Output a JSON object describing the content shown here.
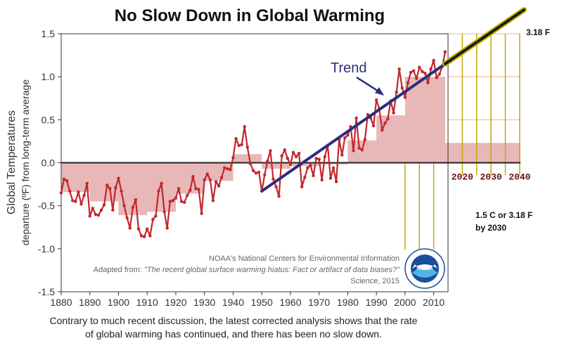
{
  "chart_data": {
    "type": "line",
    "title": "No Slow Down in Global Warming",
    "ylabel": "Global Temperatures",
    "ylabel_sub": "departure (ºF) from long-term average",
    "xlim": [
      1880,
      2015
    ],
    "ylim": [
      -1.5,
      1.5
    ],
    "x_ticks": [
      "1880",
      "1890",
      "1900",
      "1910",
      "1920",
      "1930",
      "1940",
      "1950",
      "1960",
      "1970",
      "1980",
      "1990",
      "2000",
      "2010"
    ],
    "y_ticks": [
      "1.5",
      "1.0",
      "0.5",
      "0.0",
      "-0.5",
      "-1.0",
      "-1.5"
    ],
    "series": [
      {
        "color": "#c1272d",
        "x": [
          1880,
          1881,
          1882,
          1883,
          1884,
          1885,
          1886,
          1887,
          1888,
          1889,
          1890,
          1891,
          1892,
          1893,
          1894,
          1895,
          1896,
          1897,
          1898,
          1899,
          1900,
          1901,
          1902,
          1903,
          1904,
          1905,
          1906,
          1907,
          1908,
          1909,
          1910,
          1911,
          1912,
          1913,
          1914,
          1915,
          1916,
          1917,
          1918,
          1919,
          1920,
          1921,
          1922,
          1923,
          1924,
          1925,
          1926,
          1927,
          1928,
          1929,
          1930,
          1931,
          1932,
          1933,
          1934,
          1935,
          1936,
          1937,
          1938,
          1939,
          1940,
          1941,
          1942,
          1943,
          1944,
          1945,
          1946,
          1947,
          1948,
          1949,
          1950,
          1951,
          1952,
          1953,
          1954,
          1955,
          1956,
          1957,
          1958,
          1959,
          1960,
          1961,
          1962,
          1963,
          1964,
          1965,
          1966,
          1967,
          1968,
          1969,
          1970,
          1971,
          1972,
          1973,
          1974,
          1975,
          1976,
          1977,
          1978,
          1979,
          1980,
          1981,
          1982,
          1983,
          1984,
          1985,
          1986,
          1987,
          1988,
          1989,
          1990,
          1991,
          1992,
          1993,
          1994,
          1995,
          1996,
          1997,
          1998,
          1999,
          2000,
          2001,
          2002,
          2003,
          2004,
          2005,
          2006,
          2007,
          2008,
          2009,
          2010,
          2011,
          2012,
          2013,
          2014
        ],
        "values": [
          -0.35,
          -0.19,
          -0.21,
          -0.33,
          -0.44,
          -0.45,
          -0.34,
          -0.48,
          -0.38,
          -0.24,
          -0.62,
          -0.53,
          -0.6,
          -0.61,
          -0.55,
          -0.49,
          -0.26,
          -0.3,
          -0.55,
          -0.29,
          -0.18,
          -0.33,
          -0.5,
          -0.64,
          -0.76,
          -0.52,
          -0.43,
          -0.77,
          -0.85,
          -0.86,
          -0.77,
          -0.85,
          -0.66,
          -0.62,
          -0.33,
          -0.24,
          -0.57,
          -0.76,
          -0.45,
          -0.44,
          -0.41,
          -0.3,
          -0.45,
          -0.46,
          -0.38,
          -0.32,
          -0.16,
          -0.3,
          -0.31,
          -0.59,
          -0.2,
          -0.13,
          -0.2,
          -0.44,
          -0.22,
          -0.27,
          -0.17,
          -0.06,
          -0.07,
          -0.08,
          0.06,
          0.28,
          0.2,
          0.21,
          0.42,
          0.18,
          -0.01,
          -0.09,
          -0.12,
          -0.11,
          -0.33,
          -0.14,
          0.02,
          0.14,
          -0.19,
          -0.28,
          -0.39,
          0.08,
          0.15,
          0.05,
          -0.02,
          0.12,
          0.07,
          0.11,
          -0.28,
          -0.17,
          -0.06,
          -0.03,
          -0.15,
          0.05,
          0.04,
          -0.2,
          0.07,
          0.2,
          -0.18,
          -0.06,
          -0.22,
          0.27,
          0.09,
          0.29,
          0.32,
          0.42,
          0.14,
          0.52,
          0.17,
          0.15,
          0.27,
          0.56,
          0.52,
          0.43,
          0.73,
          0.63,
          0.38,
          0.46,
          0.51,
          0.72,
          0.58,
          0.82,
          1.09,
          0.87,
          0.76,
          0.93,
          1.05,
          1.07,
          0.98,
          1.11,
          1.06,
          1.04,
          0.93,
          1.09,
          1.19,
          0.99,
          1.03,
          1.12,
          1.29
        ]
      }
    ],
    "decadal_bars": [
      {
        "start": 1880,
        "end": 1890,
        "value": -0.34
      },
      {
        "start": 1890,
        "end": 1900,
        "value": -0.45
      },
      {
        "start": 1900,
        "end": 1910,
        "value": -0.61
      },
      {
        "start": 1910,
        "end": 1920,
        "value": -0.57
      },
      {
        "start": 1920,
        "end": 1930,
        "value": -0.36
      },
      {
        "start": 1930,
        "end": 1940,
        "value": -0.21
      },
      {
        "start": 1940,
        "end": 1950,
        "value": 0.1
      },
      {
        "start": 1950,
        "end": 1960,
        "value": -0.07
      },
      {
        "start": 1960,
        "end": 1970,
        "value": -0.04
      },
      {
        "start": 1970,
        "end": 1980,
        "value": -0.02
      },
      {
        "start": 1980,
        "end": 1990,
        "value": 0.26
      },
      {
        "start": 1990,
        "end": 2000,
        "value": 0.55
      },
      {
        "start": 2000,
        "end": 2014,
        "value": 1.0
      }
    ],
    "trend": {
      "label": "Trend",
      "x": [
        1950,
        2014
      ],
      "y": [
        -0.33,
        1.15
      ],
      "color": "#2b2e7a"
    },
    "credit_lines": [
      "NOAA's National Centers for Environmental Information",
      "Science, 2015"
    ],
    "credit_adapted_prefix": "Adapted from: ",
    "credit_adapted_title": "\"The recent global surface warming hiatus: Fact or artifact of data biases?\"",
    "noaa_logo_text": "NOAA",
    "caption": [
      "Contrary to much recent discussion, the latest corrected analysis shows that the rate",
      "of global warming has continued, and there has been no slow down."
    ]
  },
  "projection": {
    "future_ticks": [
      "2020",
      "2030",
      "2040"
    ],
    "end_label": "3.18 F",
    "note": [
      "1.5 C or 3.18 F",
      "by 2030"
    ],
    "line_color": "#1c1c1c",
    "line_glow": "#c9b300",
    "guide_color": "#c9a800",
    "grid_color": "#f0b080"
  }
}
